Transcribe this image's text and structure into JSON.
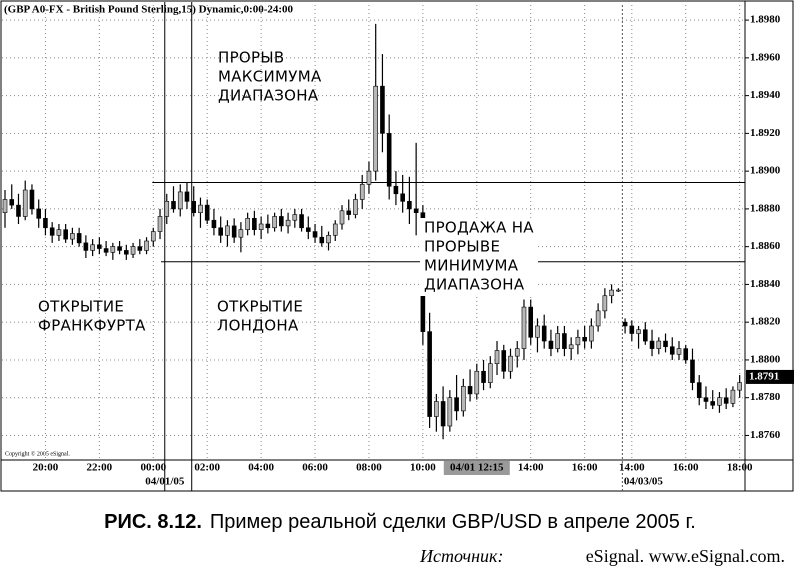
{
  "chart_data": {
    "type": "candlestick",
    "title": "(GBP A0-FX - British Pound Sterling,15) Dynamic,0:00-24:00",
    "copyright": "Copyright © 2005 eSignal.",
    "categories": [
      null,
      null,
      null,
      null,
      null,
      null,
      "20:00",
      null,
      null,
      null,
      null,
      null,
      null,
      null,
      "22:00",
      null,
      null,
      null,
      null,
      null,
      null,
      null,
      "00:00",
      null,
      null,
      null,
      null,
      null,
      null,
      null,
      "02:00",
      null,
      null,
      null,
      null,
      null,
      null,
      null,
      "04:00",
      null,
      null,
      null,
      null,
      null,
      null,
      null,
      "06:00",
      null,
      null,
      null,
      null,
      null,
      null,
      null,
      "08:00",
      null,
      null,
      null,
      null,
      null,
      null,
      null,
      "10:00",
      null,
      null,
      null,
      null,
      null,
      null,
      null,
      "04/01 12:15",
      null,
      null,
      null,
      null,
      null,
      null,
      null,
      "14:00",
      null,
      null,
      null,
      null,
      null,
      null,
      null,
      "16:00",
      null,
      null,
      null,
      null,
      null,
      null,
      "14:00",
      null,
      null,
      null,
      null,
      null,
      null,
      null,
      "16:00",
      null,
      null,
      null,
      null,
      null,
      null,
      null,
      "18:00"
    ],
    "dates": [
      null,
      null,
      null,
      null,
      null,
      null,
      null,
      null,
      null,
      null,
      null,
      null,
      null,
      null,
      null,
      null,
      null,
      null,
      null,
      null,
      null,
      null,
      "04/01/05",
      null,
      null,
      null,
      null,
      null,
      null,
      null,
      null,
      null,
      null,
      null,
      null,
      null,
      null,
      null,
      null,
      null,
      null,
      null,
      null,
      null,
      null,
      null,
      null,
      null,
      null,
      null,
      null,
      null,
      null,
      null,
      null,
      null,
      null,
      null,
      null,
      null,
      null,
      null,
      null,
      null,
      null,
      null,
      null,
      null,
      null,
      null,
      null,
      null,
      null,
      null,
      null,
      null,
      null,
      null,
      null,
      null,
      null,
      null,
      null,
      null,
      null,
      null,
      null,
      null,
      null,
      null,
      null,
      null,
      null,
      "04/03/05",
      null,
      null,
      null,
      null,
      null,
      null,
      null,
      null,
      null,
      null,
      null,
      null,
      null,
      null,
      null,
      null
    ],
    "open": [
      1.8878,
      1.8885,
      1.8882,
      1.8876,
      1.889,
      1.888,
      1.8875,
      1.887,
      1.8866,
      1.8869,
      1.8864,
      1.8867,
      1.8862,
      1.8858,
      1.8861,
      1.8859,
      1.8857,
      1.886,
      1.8858,
      1.8856,
      1.886,
      1.8858,
      1.8863,
      1.8868,
      1.8876,
      1.8884,
      1.888,
      1.8889,
      1.8884,
      1.8878,
      1.8882,
      1.8874,
      1.887,
      1.8866,
      1.8871,
      1.8865,
      1.8869,
      1.8875,
      1.8869,
      1.8872,
      1.887,
      1.8876,
      1.8871,
      1.8874,
      1.8877,
      1.887,
      1.8868,
      1.8865,
      1.8862,
      1.8866,
      1.8872,
      1.8879,
      1.8877,
      1.8885,
      1.8893,
      1.89,
      1.8945,
      1.892,
      1.8892,
      1.8888,
      1.8884,
      1.888,
      1.8878,
      1.8815,
      1.877,
      1.8778,
      1.8765,
      1.878,
      1.8773,
      1.8786,
      1.8782,
      1.8794,
      1.8788,
      1.8798,
      1.8805,
      1.8794,
      1.8802,
      1.8806,
      1.8828,
      1.8812,
      1.8818,
      1.881,
      1.8806,
      1.8814,
      1.8806,
      1.8808,
      1.8812,
      1.881,
      1.8818,
      1.8826,
      1.8834,
      1.8837,
      1.882,
      1.8818,
      1.8814,
      1.8816,
      1.881,
      1.8806,
      1.881,
      1.8807,
      1.8803,
      1.8806,
      1.88,
      1.8788,
      1.878,
      1.8778,
      1.8776,
      1.878,
      1.8777,
      1.8784
    ],
    "high": [
      1.889,
      1.8893,
      1.8888,
      1.8895,
      1.8893,
      1.8885,
      1.888,
      1.8873,
      1.8872,
      1.8872,
      1.887,
      1.887,
      1.8866,
      1.8864,
      1.8865,
      1.8863,
      1.8862,
      1.8863,
      1.8861,
      1.8862,
      1.8864,
      1.8865,
      1.887,
      1.888,
      1.8888,
      1.8892,
      1.8893,
      1.8894,
      1.8892,
      1.8886,
      1.8885,
      1.888,
      1.8876,
      1.8874,
      1.8875,
      1.8873,
      1.8878,
      1.8879,
      1.8876,
      1.8877,
      1.8878,
      1.888,
      1.8878,
      1.888,
      1.888,
      1.8876,
      1.8872,
      1.8871,
      1.8868,
      1.8874,
      1.8882,
      1.8885,
      1.8888,
      1.8898,
      1.8905,
      1.8978,
      1.8962,
      1.893,
      1.89,
      1.8898,
      1.8897,
      1.8915,
      1.8882,
      1.8825,
      1.8782,
      1.8786,
      1.8784,
      1.8792,
      1.879,
      1.8795,
      1.8798,
      1.88,
      1.8802,
      1.881,
      1.8808,
      1.8806,
      1.881,
      1.8832,
      1.8832,
      1.8822,
      1.8824,
      1.8816,
      1.8818,
      1.8818,
      1.8812,
      1.8816,
      1.8818,
      1.8822,
      1.883,
      1.8838,
      1.884,
      1.8838,
      1.8822,
      1.8821,
      1.8818,
      1.882,
      1.8816,
      1.8812,
      1.8814,
      1.8812,
      1.881,
      1.8808,
      1.8806,
      1.8792,
      1.8786,
      1.8784,
      1.8783,
      1.8785,
      1.8786,
      1.8792
    ],
    "low": [
      1.887,
      1.888,
      1.8872,
      1.8874,
      1.8877,
      1.887,
      1.8866,
      1.8862,
      1.8863,
      1.8862,
      1.8861,
      1.886,
      1.8854,
      1.8855,
      1.8856,
      1.8855,
      1.8853,
      1.8856,
      1.8853,
      1.8854,
      1.8856,
      1.8856,
      1.886,
      1.8864,
      1.8872,
      1.8878,
      1.8876,
      1.888,
      1.8876,
      1.887,
      1.8872,
      1.8866,
      1.8862,
      1.886,
      1.8862,
      1.8857,
      1.8866,
      1.8866,
      1.8864,
      1.8867,
      1.8868,
      1.8868,
      1.8867,
      1.887,
      1.8868,
      1.8864,
      1.8862,
      1.886,
      1.8858,
      1.8863,
      1.8869,
      1.8874,
      1.8875,
      1.888,
      1.8888,
      1.8895,
      1.891,
      1.8885,
      1.8882,
      1.8878,
      1.8872,
      1.8866,
      1.8808,
      1.8764,
      1.8762,
      1.8758,
      1.8762,
      1.8768,
      1.877,
      1.8778,
      1.8779,
      1.8784,
      1.8785,
      1.8792,
      1.879,
      1.879,
      1.8796,
      1.88,
      1.8808,
      1.8804,
      1.8806,
      1.8802,
      1.8804,
      1.8802,
      1.88,
      1.8803,
      1.8806,
      1.8806,
      1.8815,
      1.8822,
      1.883,
      1.8836,
      1.8814,
      1.881,
      1.8806,
      1.8808,
      1.8802,
      1.8803,
      1.8804,
      1.88,
      1.88,
      1.8798,
      1.8784,
      1.8776,
      1.8774,
      1.8774,
      1.8772,
      1.8774,
      1.8775,
      1.878
    ],
    "close": [
      1.8885,
      1.8882,
      1.8876,
      1.889,
      1.888,
      1.8875,
      1.887,
      1.8866,
      1.8869,
      1.8864,
      1.8867,
      1.8862,
      1.8858,
      1.8861,
      1.8859,
      1.8857,
      1.886,
      1.8858,
      1.8856,
      1.886,
      1.8858,
      1.8863,
      1.8868,
      1.8876,
      1.8884,
      1.888,
      1.8889,
      1.8884,
      1.8878,
      1.8882,
      1.8874,
      1.887,
      1.8866,
      1.8871,
      1.8865,
      1.8869,
      1.8875,
      1.8869,
      1.8872,
      1.887,
      1.8876,
      1.8871,
      1.8874,
      1.8877,
      1.887,
      1.8868,
      1.8865,
      1.8862,
      1.8866,
      1.8872,
      1.8879,
      1.8877,
      1.8885,
      1.8893,
      1.89,
      1.8945,
      1.892,
      1.8892,
      1.8888,
      1.8884,
      1.888,
      1.8878,
      1.8815,
      1.877,
      1.8778,
      1.8765,
      1.878,
      1.8773,
      1.8786,
      1.8782,
      1.8794,
      1.8788,
      1.8798,
      1.8805,
      1.8794,
      1.8802,
      1.8806,
      1.8828,
      1.8812,
      1.8818,
      1.881,
      1.8806,
      1.8814,
      1.8806,
      1.8808,
      1.8812,
      1.881,
      1.8818,
      1.8826,
      1.8834,
      1.8837,
      1.8837,
      1.8818,
      1.8814,
      1.8816,
      1.881,
      1.8806,
      1.881,
      1.8807,
      1.8803,
      1.8806,
      1.88,
      1.8788,
      1.878,
      1.8778,
      1.8776,
      1.878,
      1.8777,
      1.8784,
      1.8788
    ],
    "up_color": "#b8b8b8",
    "down_color": "#000000",
    "ylim": [
      1.8747,
      1.8988
    ],
    "yticks": [
      {
        "value": 1.876,
        "label": "1.8760"
      },
      {
        "value": 1.878,
        "label": "1.8780"
      },
      {
        "value": 1.88,
        "label": "1.8800"
      },
      {
        "value": 1.882,
        "label": "1.8820"
      },
      {
        "value": 1.884,
        "label": "1.8840"
      },
      {
        "value": 1.886,
        "label": "1.8860"
      },
      {
        "value": 1.888,
        "label": "1.8880"
      },
      {
        "value": 1.89,
        "label": "1.8900"
      },
      {
        "value": 1.892,
        "label": "1.8920"
      },
      {
        "value": 1.894,
        "label": "1.8940"
      },
      {
        "value": 1.896,
        "label": "1.8960"
      },
      {
        "value": 1.898,
        "label": "1.8980"
      }
    ],
    "grid": true,
    "range_high": 1.8894,
    "range_low": 1.8852,
    "last_price": 1.8791,
    "annotations": {
      "breakout_high": [
        "ПРОРЫВ",
        "МАКСИМУМА",
        "ДИАПАЗОНА"
      ],
      "sell_breakout_low": [
        "ПРОДАЖА НА",
        "ПРОРЫВЕ",
        "МИНИМУМА",
        "ДИАПАЗОНА"
      ],
      "frankfurt_open": [
        "ОТКРЫТИЕ",
        "ФРАНКФУРТА"
      ],
      "london_open": [
        "ОТКРЫТИЕ",
        "ЛОНДОНА"
      ]
    }
  },
  "caption": {
    "label": "РИС. 8.12.",
    "text": "Пример реальной сделки GBP/USD в апреле 2005 г."
  },
  "source": {
    "label": "Источник:",
    "text": "eSignal. www.eSignal.com."
  }
}
